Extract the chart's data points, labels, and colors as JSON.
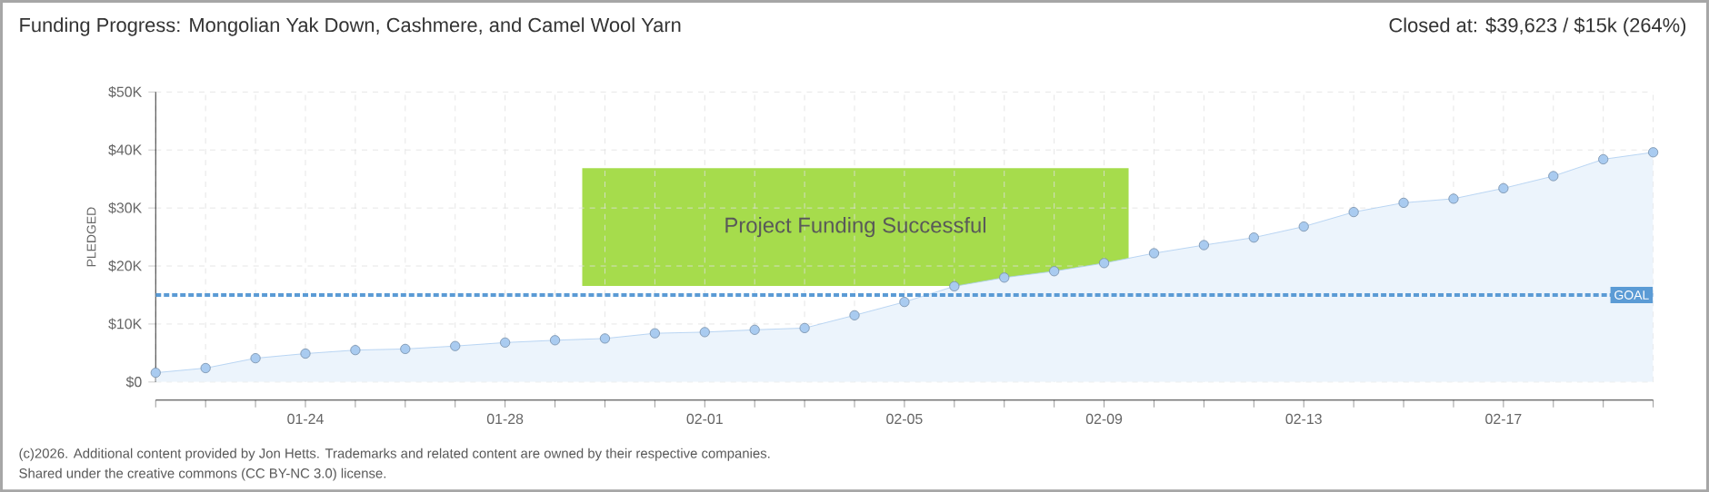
{
  "chart_data": {
    "type": "area",
    "title": "Funding Progress: Mongolian Yak Down, Cashmere, and Camel Wool Yarn",
    "subtitle": "Closed at: $39,623 / $15k (264%)",
    "ylabel": "PLEDGED",
    "categories": [
      null,
      null,
      null,
      "01-24",
      null,
      null,
      null,
      "01-28",
      null,
      null,
      null,
      "02-01",
      null,
      null,
      null,
      "02-05",
      null,
      null,
      null,
      "02-09",
      null,
      null,
      null,
      "02-13",
      null,
      null,
      null,
      "02-17",
      null,
      null,
      null
    ],
    "series": [
      {
        "color": "#a9cbf0",
        "values": [
          1.6,
          2.4,
          4.1,
          4.9,
          5.5,
          5.7,
          6.2,
          6.8,
          7.2,
          7.5,
          8.4,
          8.6,
          9.0,
          9.3,
          11.5,
          13.8,
          16.5,
          18.0,
          19.1,
          20.5,
          22.2,
          23.6,
          24.9,
          26.8,
          29.3,
          30.9,
          31.6,
          33.4,
          35.5,
          38.4,
          39.6
        ]
      }
    ],
    "ylim": [
      0,
      50
    ],
    "yticks": [
      {
        "value": 0,
        "label": "$0"
      },
      {
        "value": 10,
        "label": "$10K"
      },
      {
        "value": 20,
        "label": "$20K"
      },
      {
        "value": 30,
        "label": "$30K"
      },
      {
        "value": 40,
        "label": "$40K"
      },
      {
        "value": 50,
        "label": "$50K"
      }
    ],
    "ref_lines": [
      {
        "axis": "y",
        "value": 15,
        "label": "GOAL",
        "color": "#5b9bd5",
        "line_style": "dashed"
      }
    ],
    "grid": true,
    "marker": "circle",
    "annotations": [
      "Project Funding Successful",
      "(c)2026. Additional content provided by Jon Hetts. Trademarks and related content are owned by their respective companies.",
      "Shared under the creative commons (CC BY-NC 3.0) license."
    ]
  }
}
